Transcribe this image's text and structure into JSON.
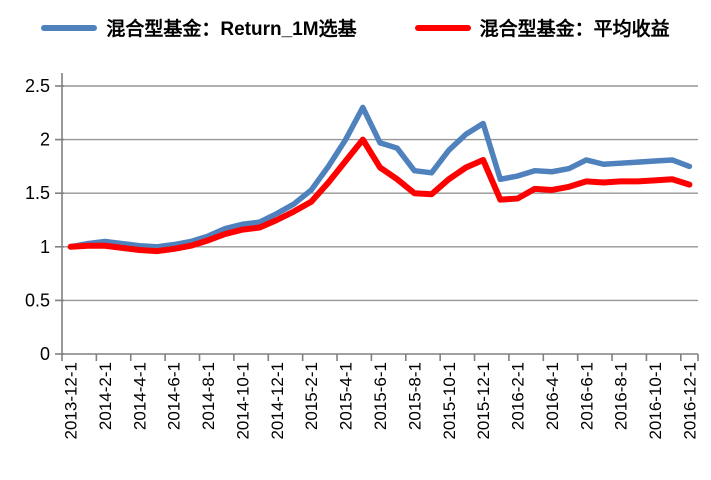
{
  "legend": [
    {
      "label": "混合型基金：Return_1M选基",
      "color": "#4F81BD"
    },
    {
      "label": "混合型基金：平均收益",
      "color": "#FF0000"
    }
  ],
  "colors": {
    "grid": "#969696",
    "axis": "#808080",
    "tick": "#808080",
    "text": "#000000",
    "background": "#FFFFFF"
  },
  "chart_data": {
    "type": "line",
    "title": "",
    "xlabel": "",
    "ylabel": "",
    "ylim": [
      0,
      2.5
    ],
    "yticks": [
      0,
      0.5,
      1,
      1.5,
      2,
      2.5
    ],
    "ytick_labels": [
      "0",
      "0.5",
      "1",
      "1.5",
      "2",
      "2.5"
    ],
    "grid": true,
    "legend_position": "top",
    "x_label_step": 2,
    "x_label_rotation": -90,
    "x": [
      "2013-12-1",
      "2014-1-1",
      "2014-2-1",
      "2014-3-1",
      "2014-4-1",
      "2014-5-1",
      "2014-6-1",
      "2014-7-1",
      "2014-8-1",
      "2014-9-1",
      "2014-10-1",
      "2014-11-1",
      "2014-12-1",
      "2015-1-1",
      "2015-2-1",
      "2015-3-1",
      "2015-4-1",
      "2015-5-1",
      "2015-6-1",
      "2015-7-1",
      "2015-8-1",
      "2015-9-1",
      "2015-10-1",
      "2015-11-1",
      "2015-12-1",
      "2016-1-1",
      "2016-2-1",
      "2016-3-1",
      "2016-4-1",
      "2016-5-1",
      "2016-6-1",
      "2016-7-1",
      "2016-8-1",
      "2016-9-1",
      "2016-10-1",
      "2016-11-1",
      "2016-12-1"
    ],
    "x_tick_labels": [
      "2013-12-1",
      "2014-2-1",
      "2014-4-1",
      "2014-6-1",
      "2014-8-1",
      "2014-10-1",
      "2014-12-1",
      "2015-2-1",
      "2015-4-1",
      "2015-6-1",
      "2015-8-1",
      "2015-10-1",
      "2015-12-1",
      "2016-2-1",
      "2016-4-1",
      "2016-6-1",
      "2016-8-1",
      "2016-10-1",
      "2016-12-1"
    ],
    "series": [
      {
        "name": "混合型基金：Return_1M选基",
        "color": "#4F81BD",
        "width": 5.5,
        "values": [
          1.0,
          1.03,
          1.05,
          1.03,
          1.01,
          1.0,
          1.02,
          1.05,
          1.1,
          1.17,
          1.21,
          1.23,
          1.31,
          1.4,
          1.53,
          1.75,
          2.0,
          2.3,
          1.97,
          1.92,
          1.71,
          1.69,
          1.9,
          2.05,
          2.15,
          1.63,
          1.66,
          1.71,
          1.7,
          1.73,
          1.81,
          1.77,
          1.78,
          1.79,
          1.8,
          1.81,
          1.75
        ]
      },
      {
        "name": "混合型基金：平均收益",
        "color": "#FF0000",
        "width": 6,
        "values": [
          1.0,
          1.01,
          1.01,
          0.99,
          0.97,
          0.96,
          0.98,
          1.01,
          1.06,
          1.12,
          1.16,
          1.18,
          1.25,
          1.33,
          1.42,
          1.6,
          1.8,
          2.0,
          1.74,
          1.63,
          1.5,
          1.49,
          1.63,
          1.74,
          1.81,
          1.44,
          1.45,
          1.54,
          1.53,
          1.56,
          1.61,
          1.6,
          1.61,
          1.61,
          1.62,
          1.63,
          1.58
        ]
      }
    ]
  }
}
